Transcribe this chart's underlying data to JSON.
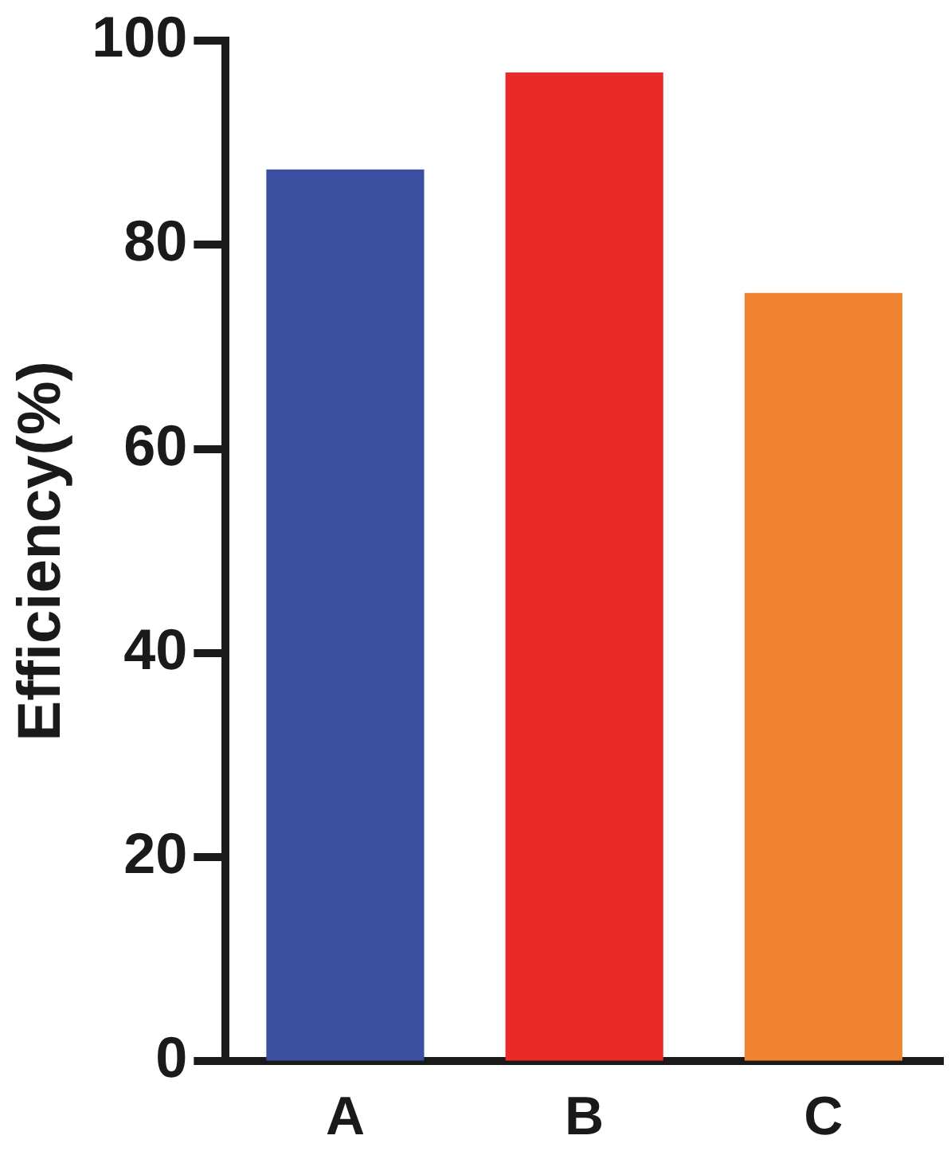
{
  "chart_data": {
    "type": "bar",
    "ylabel": "Efficiency(%)",
    "categories": [
      "A",
      "B",
      "C"
    ],
    "values": [
      87.4,
      96.9,
      75.3
    ],
    "colors": [
      "#3a4fa0",
      "#e92a28",
      "#ef8330"
    ],
    "ylim": [
      0,
      100
    ],
    "yticks": [
      0,
      20,
      40,
      60,
      80,
      100
    ],
    "grid": false,
    "legend": false
  }
}
